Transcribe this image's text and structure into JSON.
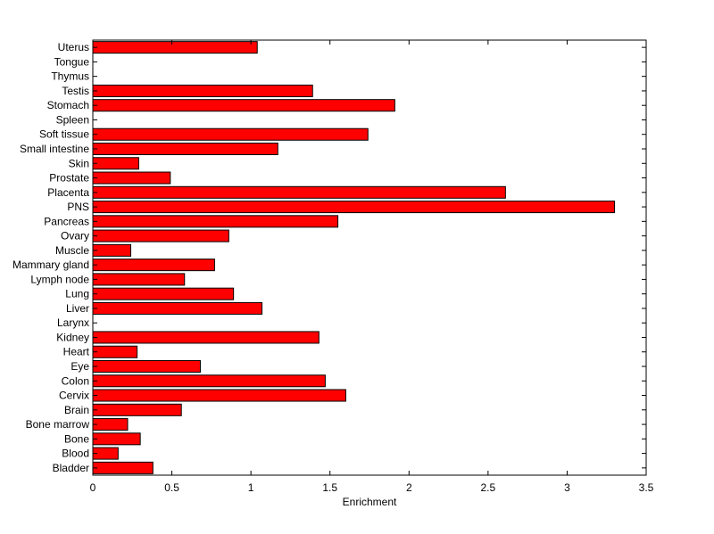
{
  "chart_data": {
    "type": "bar",
    "orientation": "horizontal",
    "categories": [
      "Uterus",
      "Tongue",
      "Thymus",
      "Testis",
      "Stomach",
      "Spleen",
      "Soft tissue",
      "Small intestine",
      "Skin",
      "Prostate",
      "Placenta",
      "PNS",
      "Pancreas",
      "Ovary",
      "Muscle",
      "Mammary gland",
      "Lymph node",
      "Lung",
      "Liver",
      "Larynx",
      "Kidney",
      "Heart",
      "Eye",
      "Colon",
      "Cervix",
      "Brain",
      "Bone marrow",
      "Bone",
      "Blood",
      "Bladder"
    ],
    "values": [
      1.04,
      0,
      0,
      1.39,
      1.91,
      0,
      1.74,
      1.17,
      0.29,
      0.49,
      2.61,
      3.3,
      1.55,
      0.86,
      0.24,
      0.77,
      0.58,
      0.89,
      1.07,
      0,
      1.43,
      0.28,
      0.68,
      1.47,
      1.6,
      0.56,
      0.22,
      0.3,
      0.16,
      0.38
    ],
    "xlabel": "Enrichment",
    "ylabel": "",
    "title": "",
    "xlim": [
      0,
      3.5
    ],
    "xticks": [
      "0",
      "0.5",
      "1",
      "1.5",
      "2",
      "2.5",
      "3",
      "3.5"
    ],
    "grid": false,
    "colors": {
      "bar": "#ff0000",
      "edge": "#000000",
      "axes": "#000000",
      "background": "#ffffff"
    }
  }
}
